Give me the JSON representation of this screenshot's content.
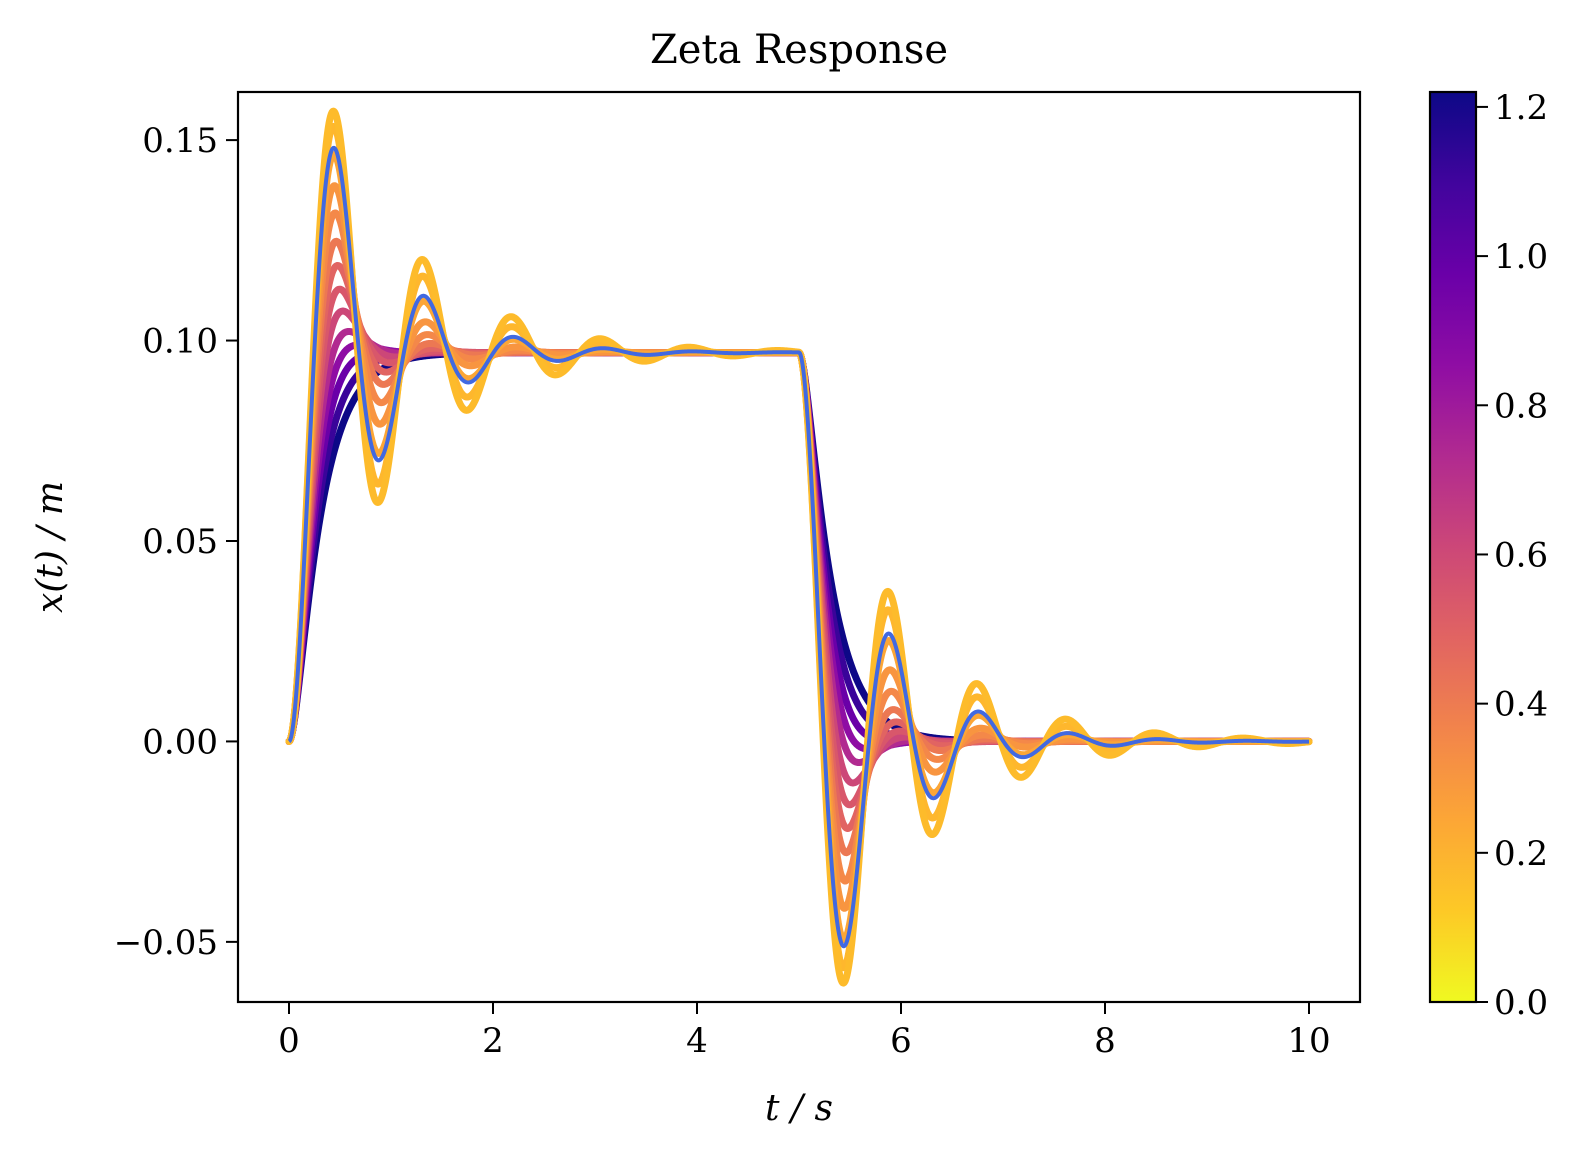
{
  "chart_data": {
    "type": "line",
    "title": "Zeta Response",
    "xlabel": "t / s",
    "ylabel": "x(t) / m",
    "xlim": [
      -0.5,
      10.5
    ],
    "ylim": [
      -0.065,
      0.162
    ],
    "xticks": [
      0,
      2,
      4,
      6,
      8,
      10
    ],
    "xtick_labels": [
      "0",
      "2",
      "4",
      "6",
      "8",
      "10"
    ],
    "yticks": [
      -0.05,
      0.0,
      0.05,
      0.1,
      0.15
    ],
    "ytick_labels": [
      "−0.05",
      "0.00",
      "0.05",
      "0.10",
      "0.15"
    ],
    "grid": false,
    "model": {
      "step_value": 0.097,
      "step_off_time": 5.0,
      "natural_frequency": 7.3,
      "t_end": 10.0
    },
    "colorbar": {
      "label": "",
      "range": [
        0.0,
        1.22
      ],
      "ticks": [
        0.0,
        0.2,
        0.4,
        0.6,
        0.8,
        1.0,
        1.2
      ],
      "tick_labels": [
        "0.0",
        "0.2",
        "0.4",
        "0.6",
        "0.8",
        "1.0",
        "1.2"
      ],
      "colormap": "plasma"
    },
    "series": [
      {
        "zeta": 1.22,
        "color": "#0d0887"
      },
      {
        "zeta": 1.05,
        "color": "#3a049a"
      },
      {
        "zeta": 0.9,
        "color": "#6a00a8"
      },
      {
        "zeta": 0.78,
        "color": "#8f0da4"
      },
      {
        "zeta": 0.68,
        "color": "#b12a90"
      },
      {
        "zeta": 0.58,
        "color": "#cc4778"
      },
      {
        "zeta": 0.5,
        "color": "#d8576b"
      },
      {
        "zeta": 0.43,
        "color": "#e16462"
      },
      {
        "zeta": 0.37,
        "color": "#ec7853"
      },
      {
        "zeta": 0.31,
        "color": "#f48849"
      },
      {
        "zeta": 0.26,
        "color": "#f89540"
      },
      {
        "zeta": 0.21,
        "color": "#fca636"
      },
      {
        "zeta": 0.17,
        "color": "#feb72d"
      },
      {
        "zeta": 0.15,
        "color": "#fdbb2b"
      }
    ],
    "reference": {
      "zeta": 0.2,
      "color": "#4169e1",
      "linewidth": 4
    }
  }
}
